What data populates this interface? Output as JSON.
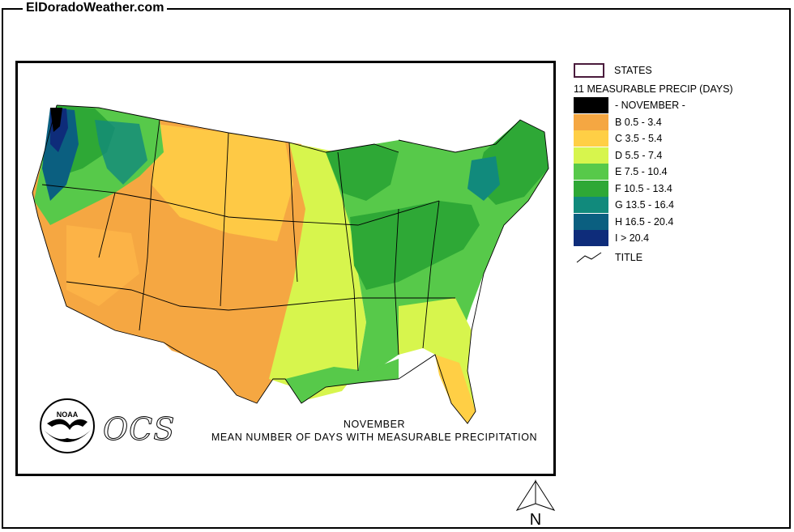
{
  "site_title": "ElDoradoWeather.com",
  "map": {
    "caption_line1": "NOVEMBER",
    "caption_line2": "MEAN NUMBER OF DAYS WITH MEASURABLE PRECIPITATION",
    "logo_noaa_text": "NOAA",
    "logo_ocs_text": "OCS"
  },
  "legend": {
    "states_label": "STATES",
    "subtitle": "11 MEASURABLE PRECIP (DAYS)",
    "items": [
      {
        "label": "- NOVEMBER -",
        "color": "#000000"
      },
      {
        "label": "B 0.5 - 3.4",
        "color": "#f5a742"
      },
      {
        "label": "C 3.5 - 5.4",
        "color": "#ffcf45"
      },
      {
        "label": "D 5.5 - 7.4",
        "color": "#d7f54d"
      },
      {
        "label": "E 7.5 - 10.4",
        "color": "#57c94a"
      },
      {
        "label": "F 10.5 - 13.4",
        "color": "#2ea836"
      },
      {
        "label": "G 13.5 - 16.4",
        "color": "#118a7c"
      },
      {
        "label": "H 16.5 - 20.4",
        "color": "#0b5f80"
      },
      {
        "label": "I > 20.4",
        "color": "#0e2c7a"
      }
    ],
    "title_label": "TITLE"
  },
  "north_label": "N"
}
